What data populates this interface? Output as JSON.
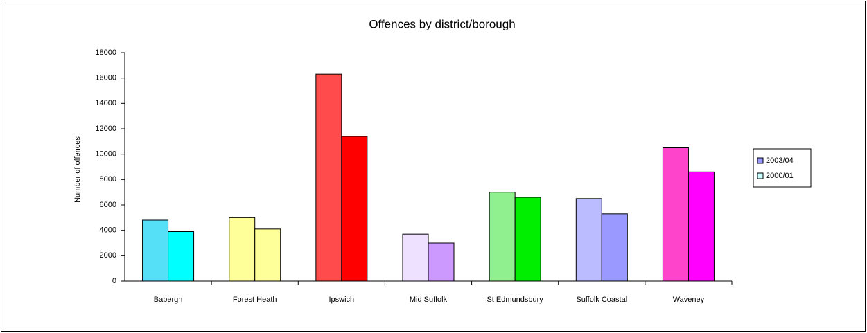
{
  "chart_data": {
    "type": "bar",
    "title": "Offences by district/borough",
    "y_label": "Number of offences",
    "categories": [
      "Babergh",
      "Forest Heath",
      "Ipswich",
      "Mid Suffolk",
      "St Edmundsbury",
      "Suffolk Coastal",
      "Waveney"
    ],
    "series": [
      {
        "name": "2003/04",
        "color": "#9999ff",
        "values": [
          4800,
          5000,
          16300,
          3700,
          7000,
          6500,
          10500
        ],
        "colors": [
          "#55e0f8",
          "#ffff99",
          "#ff4b4b",
          "#eee0ff",
          "#90f090",
          "#bbbbff",
          "#ff44cc"
        ]
      },
      {
        "name": "2000/01",
        "color": "#ccffff",
        "values": [
          3900,
          4100,
          11400,
          3000,
          6600,
          5300,
          8600
        ],
        "colors": [
          "#00ffff",
          "#ffff99",
          "#ff0000",
          "#cc99ff",
          "#00ee00",
          "#9999ff",
          "#ff00ff"
        ]
      }
    ],
    "ylim": [
      0,
      18000
    ],
    "yticks": [
      0,
      2000,
      4000,
      6000,
      8000,
      10000,
      12000,
      14000,
      16000,
      18000
    ],
    "legend": "right"
  }
}
